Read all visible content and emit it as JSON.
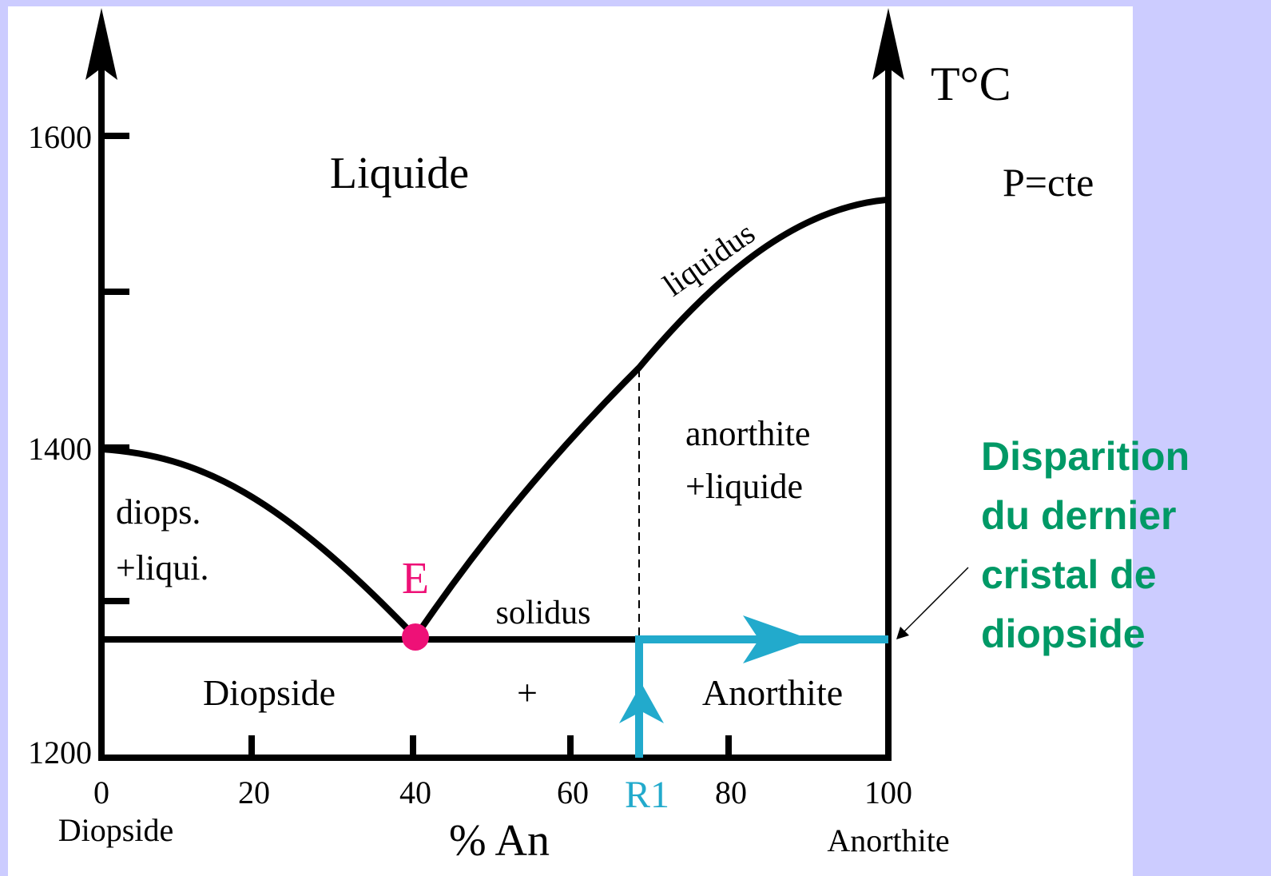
{
  "axis": {
    "y_label": "T°C",
    "y_ticks": [
      "1600",
      "1400",
      "1200"
    ],
    "x_ticks": [
      "0",
      "20",
      "40",
      "60",
      "80",
      "100"
    ],
    "x_label": "% An",
    "left_end": "Diopside",
    "right_end": "Anorthite",
    "marker": "R1"
  },
  "conditions": "P=cte",
  "regions": {
    "liquid": "Liquide",
    "diopside_liquid": [
      "diops.",
      "+liqui."
    ],
    "anorthite_liquid": [
      "anorthite",
      "+liquide"
    ],
    "solid": [
      "Diopside",
      "+",
      "Anorthite"
    ]
  },
  "curves": {
    "liquidus": "liquidus",
    "solidus": "solidus"
  },
  "point": "E",
  "annotation": [
    "Disparition",
    "du dernier",
    "cristal de",
    "diopside"
  ]
}
